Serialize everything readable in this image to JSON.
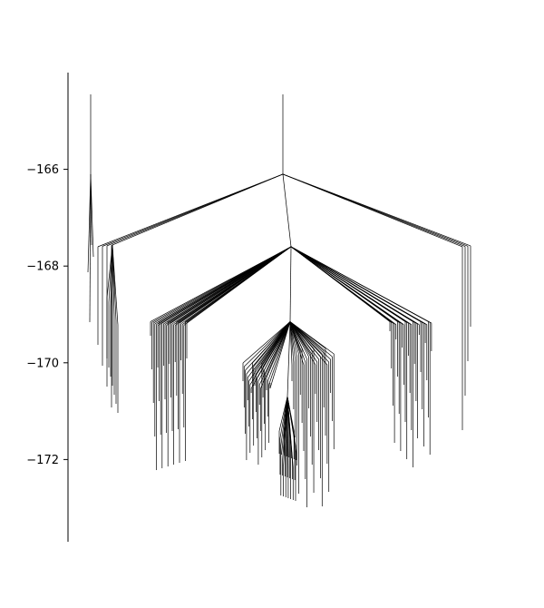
{
  "chart_data": {
    "type": "line",
    "title": "",
    "xlabel": "",
    "ylabel": "",
    "ylim": [
      -173.7,
      -164.0
    ],
    "yticks": [
      -166,
      -168,
      -170,
      -172
    ],
    "ytick_labels": [
      "−166",
      "−168",
      "−170",
      "−172"
    ],
    "grid": false,
    "legend": "none",
    "color": "#000000",
    "nodes": {
      "top_left": -166.1,
      "top_center": -166.1,
      "second_level": -167.6,
      "third_level": -169.15,
      "fourth_level": -170.7
    },
    "series": [
      {
        "values": [
          -166.1,
          -167.6,
          -169.15
        ]
      },
      {
        "values": [
          -166.1,
          -167.6,
          -169.15,
          -170.7
        ]
      }
    ]
  }
}
